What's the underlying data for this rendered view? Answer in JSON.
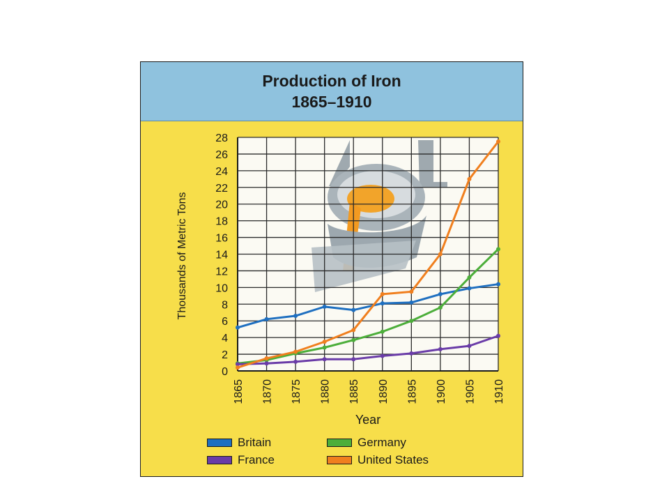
{
  "title": {
    "line1": "Production of Iron",
    "line2": "1865–1910"
  },
  "chart_data": {
    "type": "line",
    "title": "Production of Iron 1865–1910",
    "xlabel": "Year",
    "ylabel": "Thousands of Metric Tons",
    "x": [
      1865,
      1870,
      1875,
      1880,
      1885,
      1890,
      1895,
      1900,
      1905,
      1910
    ],
    "ylim": [
      0,
      28
    ],
    "yticks": [
      0,
      2,
      4,
      6,
      8,
      10,
      12,
      14,
      16,
      18,
      20,
      22,
      24,
      26,
      28
    ],
    "grid": true,
    "legend_position": "bottom",
    "series": [
      {
        "name": "Britain",
        "color": "#1e6fc0",
        "values": [
          5.2,
          6.2,
          6.6,
          7.7,
          7.3,
          8.1,
          8.2,
          9.2,
          9.9,
          10.4
        ]
      },
      {
        "name": "Germany",
        "color": "#4cae3a",
        "values": [
          0.9,
          1.3,
          2.1,
          2.8,
          3.7,
          4.7,
          6.0,
          7.6,
          11.2,
          14.6
        ]
      },
      {
        "name": "France",
        "color": "#6a3ca8",
        "values": [
          0.8,
          0.9,
          1.1,
          1.4,
          1.4,
          1.8,
          2.1,
          2.6,
          3.0,
          4.2
        ]
      },
      {
        "name": "United States",
        "color": "#f07f1e",
        "values": [
          0.4,
          1.5,
          2.3,
          3.5,
          4.9,
          9.2,
          9.5,
          14.0,
          23.0,
          27.5
        ]
      }
    ]
  }
}
